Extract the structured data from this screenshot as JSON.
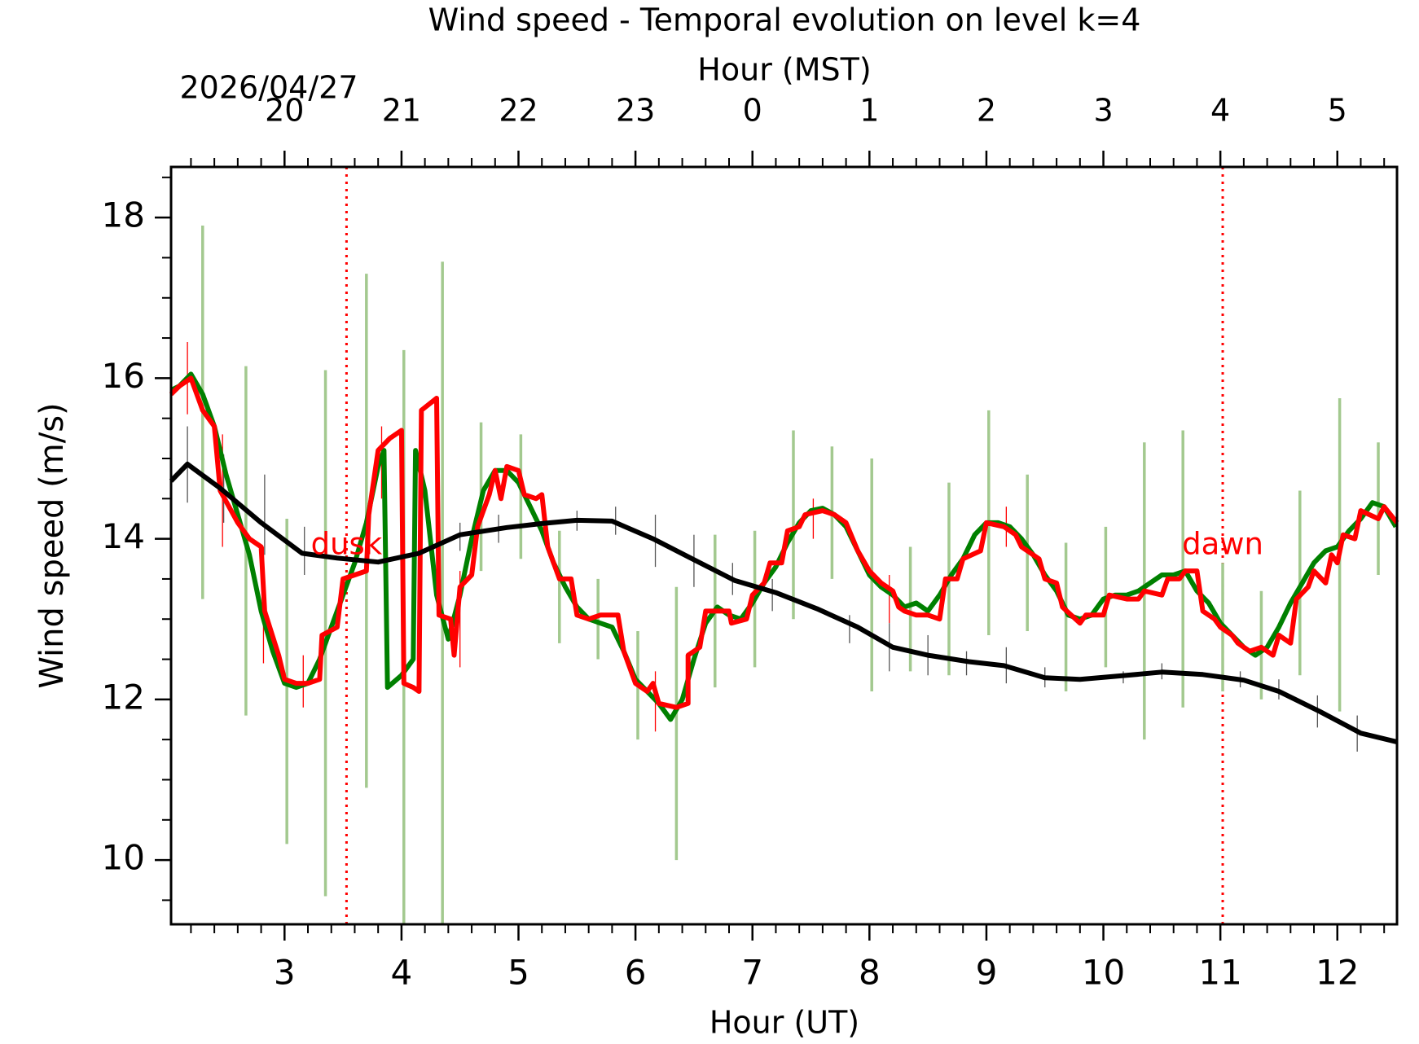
{
  "chart_data": {
    "type": "line",
    "title": "Wind speed - Temporal evolution on level k=4",
    "xlabel": "Hour (UT)",
    "ylabel": "Wind speed (m/s)",
    "x2label": "Hour (MST)",
    "date_label": "2026/04/27",
    "xlim": [
      2.03,
      12.51
    ],
    "ylim": [
      9.2,
      18.63
    ],
    "xticks": [
      3,
      4,
      5,
      6,
      7,
      8,
      9,
      10,
      11,
      12
    ],
    "xminorticks": [
      2.2,
      2.4,
      2.6,
      2.8,
      3.2,
      3.4,
      3.6,
      3.8,
      4.2,
      4.4,
      4.6,
      4.8,
      5.2,
      5.4,
      5.6,
      5.8,
      6.2,
      6.4,
      6.6,
      6.8,
      7.2,
      7.4,
      7.6,
      7.8,
      8.2,
      8.4,
      8.6,
      8.8,
      9.2,
      9.4,
      9.6,
      9.8,
      10.2,
      10.4,
      10.6,
      10.8,
      11.2,
      11.4,
      11.6,
      11.8,
      12.2,
      12.4
    ],
    "x2ticks": [
      {
        "value": 3,
        "label": "20"
      },
      {
        "value": 4,
        "label": "21"
      },
      {
        "value": 5,
        "label": "22"
      },
      {
        "value": 6,
        "label": "23"
      },
      {
        "value": 7,
        "label": "0"
      },
      {
        "value": 8,
        "label": "1"
      },
      {
        "value": 9,
        "label": "2"
      },
      {
        "value": 10,
        "label": "3"
      },
      {
        "value": 11,
        "label": "4"
      },
      {
        "value": 12,
        "label": "5"
      }
    ],
    "yticks": [
      10,
      12,
      14,
      16,
      18
    ],
    "yminorticks": [
      9.5,
      10.5,
      11,
      11.5,
      12.5,
      13,
      13.5,
      14.5,
      15,
      15.5,
      16.5,
      17,
      17.5,
      18.5
    ],
    "vlines": [
      {
        "x": 3.53,
        "label": "dusk",
        "color": "#ff0000"
      },
      {
        "x": 11.02,
        "label": "dawn",
        "color": "#ff0000"
      }
    ],
    "series": [
      {
        "color": "#008000",
        "errorbar_color": "#a3c98f",
        "x": [
          2.03,
          2.1,
          2.2,
          2.3,
          2.4,
          2.5,
          2.6,
          2.7,
          2.8,
          2.9,
          3.0,
          3.1,
          3.2,
          3.3,
          3.4,
          3.5,
          3.6,
          3.7,
          3.8,
          3.85,
          3.88,
          4.0,
          4.1,
          4.12,
          4.2,
          4.3,
          4.4,
          4.5,
          4.6,
          4.7,
          4.8,
          4.9,
          5.0,
          5.1,
          5.2,
          5.3,
          5.4,
          5.5,
          5.6,
          5.7,
          5.8,
          5.9,
          6.0,
          6.1,
          6.2,
          6.3,
          6.4,
          6.5,
          6.6,
          6.7,
          6.8,
          6.9,
          7.0,
          7.1,
          7.2,
          7.3,
          7.4,
          7.5,
          7.6,
          7.7,
          7.8,
          7.9,
          8.0,
          8.1,
          8.2,
          8.3,
          8.4,
          8.5,
          8.6,
          8.7,
          8.8,
          8.9,
          9.0,
          9.1,
          9.2,
          9.3,
          9.4,
          9.5,
          9.6,
          9.7,
          9.8,
          9.9,
          10.0,
          10.1,
          10.2,
          10.3,
          10.4,
          10.5,
          10.6,
          10.7,
          10.8,
          10.9,
          11.0,
          11.1,
          11.2,
          11.3,
          11.4,
          11.5,
          11.6,
          11.7,
          11.8,
          11.9,
          12.0,
          12.1,
          12.2,
          12.3,
          12.4,
          12.5
        ],
        "values": [
          15.85,
          15.9,
          16.05,
          15.8,
          15.4,
          14.8,
          14.3,
          13.8,
          13.1,
          12.6,
          12.2,
          12.15,
          12.2,
          12.5,
          12.9,
          13.3,
          13.7,
          14.2,
          14.9,
          15.1,
          12.15,
          12.3,
          12.5,
          15.1,
          14.6,
          13.3,
          12.75,
          13.3,
          14.0,
          14.6,
          14.85,
          14.85,
          14.7,
          14.4,
          14.1,
          13.7,
          13.4,
          13.15,
          13.0,
          12.95,
          12.9,
          12.6,
          12.25,
          12.1,
          11.95,
          11.75,
          12.0,
          12.5,
          12.95,
          13.15,
          13.05,
          13.0,
          13.2,
          13.45,
          13.65,
          13.95,
          14.2,
          14.35,
          14.38,
          14.3,
          14.15,
          13.85,
          13.55,
          13.4,
          13.3,
          13.15,
          13.2,
          13.1,
          13.3,
          13.55,
          13.75,
          14.05,
          14.2,
          14.2,
          14.15,
          14.0,
          13.8,
          13.55,
          13.35,
          13.05,
          13.0,
          13.05,
          13.25,
          13.3,
          13.3,
          13.35,
          13.45,
          13.55,
          13.55,
          13.6,
          13.35,
          13.2,
          12.95,
          12.8,
          12.65,
          12.55,
          12.65,
          12.9,
          13.2,
          13.45,
          13.7,
          13.85,
          13.9,
          14.1,
          14.25,
          14.45,
          14.4,
          14.15
        ],
        "errorbars": {
          "x": [
            2.3,
            2.67,
            3.02,
            3.35,
            3.7,
            4.02,
            4.35,
            4.68,
            5.02,
            5.35,
            5.68,
            6.02,
            6.35,
            6.68,
            7.02,
            7.35,
            7.68,
            8.02,
            8.35,
            8.68,
            9.02,
            9.35,
            9.68,
            10.02,
            10.35,
            10.68,
            11.02,
            11.35,
            11.68,
            12.02,
            12.35
          ],
          "low": [
            13.25,
            11.8,
            10.2,
            9.55,
            10.9,
            9.2,
            9.2,
            13.6,
            13.75,
            12.7,
            12.5,
            11.5,
            10.0,
            12.15,
            12.4,
            13.0,
            13.5,
            12.1,
            12.35,
            12.3,
            12.8,
            12.85,
            12.1,
            12.4,
            11.5,
            11.9,
            12.1,
            12.0,
            12.3,
            11.85,
            13.55
          ],
          "high": [
            17.9,
            16.15,
            14.25,
            16.1,
            17.3,
            16.35,
            17.45,
            15.45,
            15.3,
            14.1,
            13.5,
            12.85,
            13.4,
            14.05,
            14.1,
            15.35,
            15.15,
            15.0,
            13.9,
            14.7,
            15.6,
            14.8,
            13.95,
            14.15,
            15.2,
            15.35,
            13.7,
            13.35,
            14.6,
            15.75,
            15.2
          ]
        }
      },
      {
        "color": "#ff0000",
        "errorbar_color": "#ff0000",
        "x": [
          2.03,
          2.1,
          2.2,
          2.3,
          2.4,
          2.45,
          2.6,
          2.7,
          2.8,
          2.83,
          2.95,
          3.0,
          3.1,
          3.2,
          3.3,
          3.32,
          3.45,
          3.5,
          3.6,
          3.7,
          3.72,
          3.8,
          3.9,
          4.0,
          4.02,
          4.1,
          4.15,
          4.17,
          4.3,
          4.32,
          4.42,
          4.45,
          4.5,
          4.6,
          4.65,
          4.75,
          4.8,
          4.85,
          4.9,
          5.0,
          5.05,
          5.15,
          5.2,
          5.25,
          5.35,
          5.45,
          5.5,
          5.6,
          5.7,
          5.85,
          5.9,
          6.0,
          6.1,
          6.15,
          6.2,
          6.35,
          6.45,
          6.45,
          6.55,
          6.6,
          6.8,
          6.82,
          6.95,
          7.0,
          7.1,
          7.15,
          7.25,
          7.3,
          7.4,
          7.45,
          7.6,
          7.7,
          7.8,
          7.9,
          8.0,
          8.1,
          8.2,
          8.25,
          8.3,
          8.4,
          8.5,
          8.6,
          8.65,
          8.75,
          8.8,
          8.95,
          9.0,
          9.15,
          9.25,
          9.3,
          9.45,
          9.5,
          9.6,
          9.65,
          9.8,
          9.85,
          10.0,
          10.05,
          10.2,
          10.3,
          10.35,
          10.5,
          10.55,
          10.65,
          10.7,
          10.8,
          10.85,
          10.95,
          11.0,
          11.1,
          11.15,
          11.25,
          11.35,
          11.45,
          11.5,
          11.6,
          11.65,
          11.75,
          11.8,
          11.9,
          11.95,
          12.0,
          12.05,
          12.15,
          12.2,
          12.35,
          12.4,
          12.51
        ],
        "values": [
          15.8,
          15.9,
          16.0,
          15.6,
          15.4,
          14.6,
          14.2,
          14.0,
          13.9,
          13.1,
          12.55,
          12.25,
          12.2,
          12.2,
          12.25,
          12.8,
          12.9,
          13.5,
          13.55,
          13.6,
          14.3,
          15.1,
          15.25,
          15.35,
          12.2,
          12.15,
          12.1,
          15.6,
          15.75,
          13.05,
          13.0,
          12.55,
          13.4,
          13.55,
          14.15,
          14.55,
          14.85,
          14.5,
          14.9,
          14.85,
          14.55,
          14.5,
          14.55,
          13.9,
          13.5,
          13.5,
          13.05,
          13.0,
          13.05,
          13.05,
          12.6,
          12.2,
          12.1,
          12.2,
          11.95,
          11.9,
          11.95,
          12.55,
          12.65,
          13.1,
          13.1,
          12.95,
          13.0,
          13.3,
          13.45,
          13.7,
          13.7,
          14.1,
          14.15,
          14.3,
          14.35,
          14.3,
          14.2,
          13.85,
          13.6,
          13.45,
          13.35,
          13.15,
          13.1,
          13.05,
          13.05,
          13.0,
          13.5,
          13.5,
          13.75,
          13.85,
          14.2,
          14.15,
          14.05,
          13.9,
          13.75,
          13.5,
          13.45,
          13.15,
          12.95,
          13.05,
          13.05,
          13.3,
          13.25,
          13.25,
          13.35,
          13.3,
          13.5,
          13.5,
          13.6,
          13.6,
          13.1,
          13.0,
          12.9,
          12.8,
          12.7,
          12.6,
          12.65,
          12.55,
          12.8,
          12.7,
          13.25,
          13.4,
          13.6,
          13.45,
          13.8,
          13.7,
          14.05,
          14.0,
          14.35,
          14.25,
          14.4,
          14.2
        ],
        "errorbars": {
          "x": [
            2.17,
            2.47,
            2.82,
            3.16,
            3.83,
            4.17,
            4.5,
            6.17,
            7.52,
            8.17,
            9.17
          ],
          "low": [
            15.55,
            13.9,
            12.45,
            11.9,
            14.5,
            14.5,
            12.4,
            11.6,
            14.0,
            12.95,
            13.9
          ],
          "high": [
            16.45,
            15.3,
            13.9,
            12.55,
            15.4,
            15.5,
            13.6,
            12.35,
            14.5,
            13.55,
            14.4
          ]
        }
      },
      {
        "color": "#000000",
        "errorbar_color": "#555555",
        "x": [
          2.03,
          2.17,
          2.45,
          2.8,
          3.15,
          3.45,
          3.8,
          4.15,
          4.5,
          4.9,
          5.2,
          5.5,
          5.8,
          6.15,
          6.5,
          6.85,
          7.2,
          7.55,
          7.9,
          8.2,
          8.5,
          8.85,
          9.15,
          9.5,
          9.8,
          10.2,
          10.5,
          10.85,
          11.2,
          11.5,
          11.85,
          12.2,
          12.51
        ],
        "values": [
          14.72,
          14.93,
          14.63,
          14.2,
          13.82,
          13.76,
          13.71,
          13.82,
          14.05,
          14.14,
          14.19,
          14.23,
          14.22,
          14.0,
          13.74,
          13.48,
          13.33,
          13.13,
          12.9,
          12.65,
          12.55,
          12.47,
          12.42,
          12.27,
          12.25,
          12.3,
          12.34,
          12.31,
          12.24,
          12.1,
          11.85,
          11.58,
          11.47
        ],
        "errorbars": {
          "x": [
            2.17,
            2.48,
            2.83,
            3.17,
            4.5,
            4.83,
            5.5,
            5.83,
            6.17,
            6.5,
            6.83,
            7.17,
            7.83,
            8.17,
            8.5,
            8.83,
            9.17,
            9.5,
            10.17,
            10.5,
            11.17,
            11.5,
            11.83,
            12.17
          ],
          "low": [
            14.45,
            14.2,
            13.8,
            13.55,
            13.85,
            13.95,
            14.1,
            14.05,
            13.65,
            13.4,
            13.3,
            13.1,
            12.7,
            12.35,
            12.3,
            12.3,
            12.2,
            12.15,
            12.2,
            12.25,
            12.15,
            12.0,
            11.65,
            11.35
          ],
          "high": [
            15.4,
            15.05,
            14.8,
            14.15,
            14.2,
            14.3,
            14.35,
            14.4,
            14.3,
            14.05,
            13.7,
            13.5,
            13.05,
            12.95,
            12.8,
            12.6,
            12.65,
            12.4,
            12.35,
            12.45,
            12.35,
            12.25,
            12.05,
            11.8
          ]
        }
      }
    ]
  }
}
